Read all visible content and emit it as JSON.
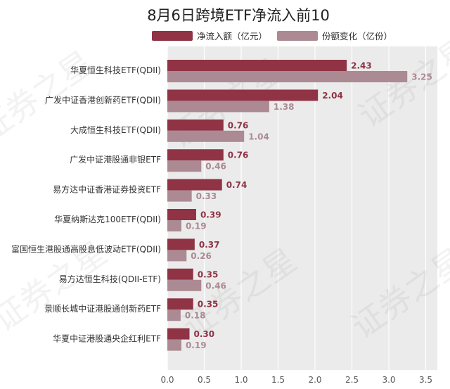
{
  "chart_data": {
    "type": "bar",
    "orientation": "horizontal",
    "title": "8月6日跨境ETF净流入前10",
    "categories": [
      "华夏恒生科技ETF(QDII)",
      "广发中证香港创新药ETF(QDII)",
      "大成恒生科技ETF(QDII)",
      "广发中证港股通非银ETF",
      "易方达中证香港证券投资ETF",
      "华夏纳斯达克100ETF(QDII)",
      "富国恒生港股通高股息低波动ETF(QDII)",
      "易方达恒生科技(QDII-ETF)",
      "景顺长城中证港股通创新药ETF",
      "华夏中证港股通央企红利ETF"
    ],
    "series": [
      {
        "name": "净流入额（亿元）",
        "color": "#8f3345",
        "values": [
          2.43,
          2.04,
          0.76,
          0.76,
          0.74,
          0.39,
          0.37,
          0.35,
          0.35,
          0.3
        ],
        "labels": [
          "2.43",
          "2.04",
          "0.76",
          "0.76",
          "0.74",
          "0.39",
          "0.37",
          "0.35",
          "0.35",
          "0.30"
        ]
      },
      {
        "name": "份额变化（亿份）",
        "color": "#ab8a93",
        "values": [
          3.25,
          1.38,
          1.04,
          0.46,
          0.33,
          0.19,
          0.26,
          0.46,
          0.18,
          0.19
        ],
        "labels": [
          "3.25",
          "1.38",
          "1.04",
          "0.46",
          "0.33",
          "0.19",
          "0.26",
          "0.46",
          "0.18",
          "0.19"
        ]
      }
    ],
    "xlim": [
      0,
      3.5
    ],
    "xticks": [
      "0.0",
      "0.5",
      "1.0",
      "1.5",
      "2.0",
      "2.5",
      "3.0",
      "3.5"
    ],
    "xtick_values": [
      0,
      0.5,
      1.0,
      1.5,
      2.0,
      2.5,
      3.0,
      3.5
    ],
    "grid": true,
    "legend_position": "top"
  },
  "watermark": "证券之星"
}
